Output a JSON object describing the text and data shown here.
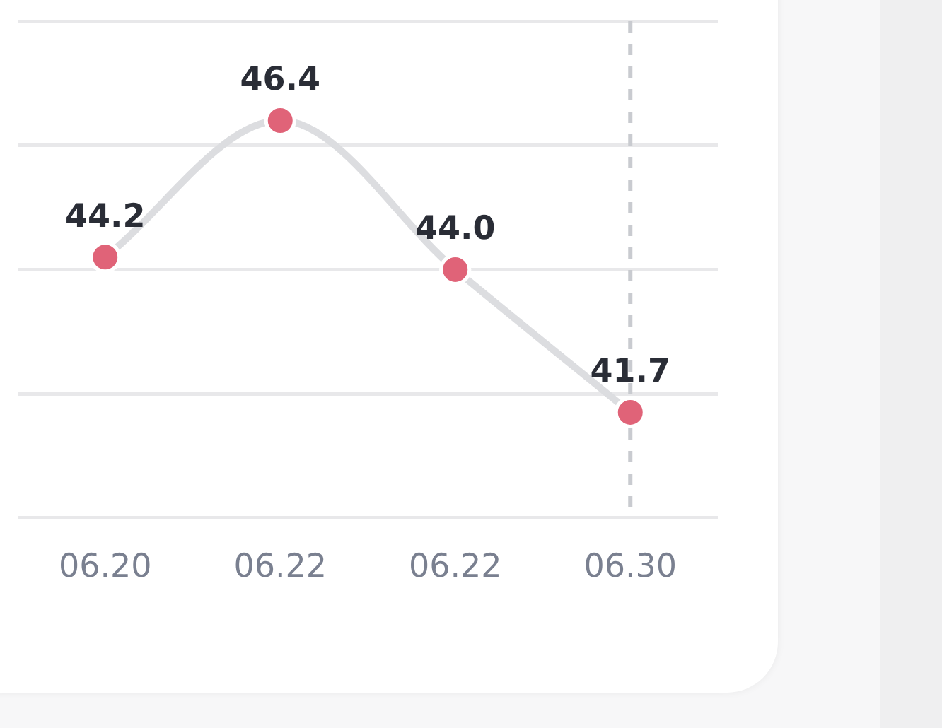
{
  "chart_data": {
    "type": "line",
    "categories": [
      "06.20",
      "06.22",
      "06.22",
      "06.30"
    ],
    "series": [
      {
        "color": "#e06378",
        "values": [
          44.2,
          46.4,
          44.0,
          41.7
        ],
        "value_labels": [
          "44.2",
          "46.4",
          "44.0",
          "41.7"
        ]
      }
    ],
    "ylim": [
      40,
      48
    ],
    "yticks": [
      {
        "value": 40,
        "label": null
      },
      {
        "value": 42,
        "label": null
      },
      {
        "value": 44,
        "label": null
      },
      {
        "value": 46,
        "label": null
      },
      {
        "value": 48,
        "label": null
      }
    ],
    "tick_labels": "x",
    "grid": "y",
    "legend": false,
    "marker": "circle",
    "line_style": "solid",
    "ref_lines": [
      {
        "axis": "x",
        "value": "06.30",
        "color": "#c9cbd0",
        "line_style": "dashed"
      }
    ]
  }
}
